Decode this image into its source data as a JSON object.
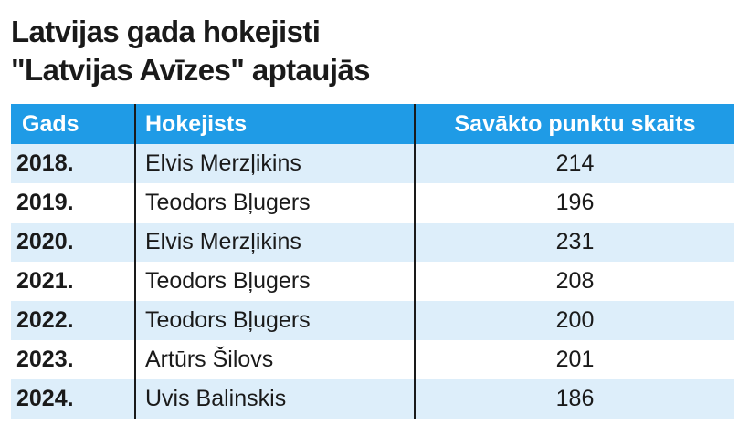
{
  "title": {
    "line1": "Latvijas gada hokejisti",
    "line2": "\"Latvijas Avīzes\" aptaujās"
  },
  "table": {
    "headers": [
      "Gads",
      "Hokejists",
      "Savākto punktu skaits"
    ],
    "rows": [
      {
        "year": "2018.",
        "player": "Elvis Merzļikins",
        "points": "214"
      },
      {
        "year": "2019.",
        "player": "Teodors Bļugers",
        "points": "196"
      },
      {
        "year": "2020.",
        "player": "Elvis Merzļikins",
        "points": "231"
      },
      {
        "year": "2021.",
        "player": "Teodors Bļugers",
        "points": "208"
      },
      {
        "year": "2022.",
        "player": "Teodors Bļugers",
        "points": "200"
      },
      {
        "year": "2023.",
        "player": "Artūrs Šilovs",
        "points": "201"
      },
      {
        "year": "2024.",
        "player": "Uvis Balinskis",
        "points": "186"
      }
    ]
  },
  "colors": {
    "header_bg": "#1f9be6",
    "stripe_bg": "#ddeefa",
    "text": "#1a1a1a"
  }
}
